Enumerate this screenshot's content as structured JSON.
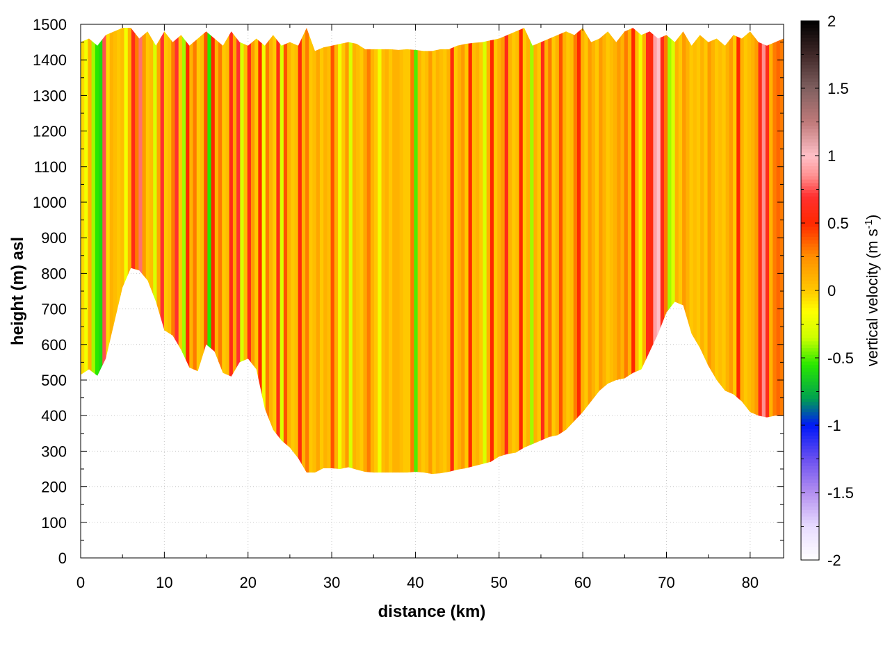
{
  "chart_data": {
    "type": "heatmap",
    "xlabel": "distance (km)",
    "ylabel": "height (m) asl",
    "colorbar_label": "vertical velocity (m s",
    "colorbar_label_sup": "-1",
    "colorbar_label_tail": ")",
    "xlim": [
      0,
      84
    ],
    "ylim": [
      0,
      1500
    ],
    "clim": [
      -2,
      2
    ],
    "x_ticks": [
      0,
      10,
      20,
      30,
      40,
      50,
      60,
      70,
      80
    ],
    "x_tick_labels": [
      "0",
      "10",
      "20",
      "30",
      "40",
      "50",
      "60",
      "70",
      "80"
    ],
    "y_ticks": [
      0,
      100,
      200,
      300,
      400,
      500,
      600,
      700,
      800,
      900,
      1000,
      1100,
      1200,
      1300,
      1400,
      1500
    ],
    "y_tick_labels": [
      "0",
      "100",
      "200",
      "300",
      "400",
      "500",
      "600",
      "700",
      "800",
      "900",
      "1000",
      "1100",
      "1200",
      "1300",
      "1400",
      "1500"
    ],
    "c_ticks": [
      -2,
      -1.5,
      -1,
      -0.5,
      0,
      0.5,
      1,
      1.5,
      2
    ],
    "c_tick_labels": [
      "-2",
      "-1.5",
      "-1",
      "-0.5",
      "0",
      "0.5",
      "1",
      "1.5",
      "2"
    ],
    "grid": true,
    "colormap": [
      [
        -2.0,
        "#ffffff"
      ],
      [
        -1.75,
        "#e8dcff"
      ],
      [
        -1.5,
        "#b490f0"
      ],
      [
        -1.25,
        "#6a50f0"
      ],
      [
        -1.0,
        "#0018f8"
      ],
      [
        -0.8,
        "#00a050"
      ],
      [
        -0.55,
        "#28e800"
      ],
      [
        -0.35,
        "#ccff00"
      ],
      [
        -0.15,
        "#ffff00"
      ],
      [
        0.0,
        "#ffc800"
      ],
      [
        0.25,
        "#ff9000"
      ],
      [
        0.5,
        "#ff2800"
      ],
      [
        0.7,
        "#ff3030"
      ],
      [
        0.85,
        "#ff9090"
      ],
      [
        1.0,
        "#ffc0c8"
      ],
      [
        1.25,
        "#c07a7a"
      ],
      [
        1.5,
        "#806060"
      ],
      [
        1.75,
        "#402828"
      ],
      [
        2.0,
        "#000000"
      ]
    ],
    "terrain": {
      "x": [
        0,
        1,
        2,
        3,
        4,
        5,
        6,
        7,
        8,
        9,
        10,
        11,
        12,
        13,
        14,
        15,
        16,
        17,
        18,
        19,
        20,
        21,
        22,
        23,
        24,
        25,
        26,
        27,
        28,
        29,
        30,
        31,
        32,
        33,
        34,
        35,
        36,
        37,
        38,
        39,
        40,
        41,
        42,
        43,
        44,
        45,
        46,
        47,
        48,
        49,
        50,
        51,
        52,
        53,
        54,
        55,
        56,
        57,
        58,
        59,
        60,
        61,
        62,
        63,
        64,
        65,
        66,
        67,
        68,
        69,
        70,
        71,
        72,
        73,
        74,
        75,
        76,
        77,
        78,
        79,
        80,
        81,
        82,
        83,
        84
      ],
      "y": [
        515,
        530,
        512,
        560,
        660,
        760,
        815,
        808,
        780,
        720,
        640,
        625,
        585,
        535,
        525,
        600,
        580,
        520,
        510,
        550,
        560,
        530,
        420,
        360,
        330,
        310,
        280,
        240,
        240,
        252,
        252,
        250,
        255,
        248,
        242,
        240,
        240,
        240,
        240,
        240,
        242,
        240,
        236,
        238,
        242,
        248,
        252,
        258,
        264,
        270,
        285,
        292,
        296,
        310,
        320,
        330,
        340,
        345,
        360,
        385,
        410,
        440,
        470,
        490,
        500,
        505,
        520,
        530,
        580,
        630,
        690,
        720,
        710,
        630,
        590,
        540,
        500,
        470,
        460,
        440,
        410,
        400,
        395,
        400,
        400
      ]
    },
    "top_boundary": {
      "x": [
        0,
        1,
        2,
        3,
        4,
        5,
        6,
        7,
        8,
        9,
        10,
        11,
        12,
        13,
        14,
        15,
        16,
        17,
        18,
        19,
        20,
        21,
        22,
        23,
        24,
        25,
        26,
        27,
        28,
        29,
        30,
        31,
        32,
        33,
        34,
        35,
        36,
        37,
        38,
        39,
        40,
        41,
        42,
        43,
        44,
        45,
        46,
        47,
        48,
        49,
        50,
        51,
        52,
        53,
        54,
        55,
        56,
        57,
        58,
        59,
        60,
        61,
        62,
        63,
        64,
        65,
        66,
        67,
        68,
        69,
        70,
        71,
        72,
        73,
        74,
        75,
        76,
        77,
        78,
        79,
        80,
        81,
        82,
        83,
        84
      ],
      "y": [
        1450,
        1460,
        1440,
        1470,
        1480,
        1490,
        1490,
        1460,
        1480,
        1440,
        1480,
        1450,
        1470,
        1440,
        1460,
        1480,
        1460,
        1440,
        1480,
        1450,
        1440,
        1460,
        1440,
        1470,
        1440,
        1450,
        1440,
        1490,
        1425,
        1435,
        1440,
        1445,
        1450,
        1445,
        1430,
        1430,
        1430,
        1430,
        1428,
        1430,
        1428,
        1425,
        1425,
        1430,
        1430,
        1440,
        1445,
        1448,
        1450,
        1455,
        1460,
        1470,
        1480,
        1490,
        1440,
        1450,
        1460,
        1470,
        1480,
        1470,
        1490,
        1450,
        1460,
        1480,
        1450,
        1480,
        1490,
        1470,
        1480,
        1460,
        1470,
        1450,
        1480,
        1440,
        1470,
        1450,
        1460,
        1440,
        1470,
        1460,
        1480,
        1450,
        1440,
        1450,
        1460
      ]
    },
    "columns_w": [
      -0.05,
      -0.2,
      0.1,
      -0.4,
      -0.55,
      -0.6,
      0.75,
      -0.05,
      0.1,
      0.05,
      0.0,
      0.05,
      -0.2,
      0.1,
      0.6,
      0.3,
      0.8,
      0.2,
      0.0,
      0.05,
      -0.3,
      0.15,
      0.7,
      0.0,
      0.05,
      0.3,
      0.7,
      0.0,
      -0.4,
      0.5,
      0.1,
      0.3,
      0.0,
      0.05,
      0.4,
      -0.55,
      0.5,
      0.1,
      0.3,
      0.0,
      0.05,
      0.6,
      0.15,
      0.7,
      -0.3,
      0.05,
      0.6,
      0.2,
      0.0,
      0.5,
      -0.2,
      0.3,
      0.1,
      0.0,
      0.6,
      -0.3,
      0.4,
      0.1,
      0.0,
      0.05,
      0.55,
      0.1,
      0.3,
      0.0,
      0.05,
      0.15,
      0.0,
      0.1,
      0.05,
      0.4,
      0.1,
      -0.2,
      0.0,
      0.2,
      -0.3,
      0.1,
      0.05,
      0.0,
      0.15,
      0.3,
      0.1,
      0.0,
      -0.2,
      0.05,
      0.1,
      0.0,
      0.1,
      0.1,
      0.05,
      0.0,
      0.0,
      0.3,
      -0.5,
      0.1,
      0.0,
      0.05,
      0.2,
      0.0,
      0.1,
      0.05,
      0.0,
      0.1,
      0.55,
      0.0,
      0.1,
      0.2,
      0.0,
      0.5,
      0.05,
      0.1,
      0.0,
      -0.3,
      0.1,
      0.5,
      0.0,
      0.1,
      0.2,
      0.6,
      0.1,
      0.0,
      0.05,
      0.5,
      0.0,
      0.1,
      -0.4,
      0.1,
      0.0,
      0.6,
      0.1,
      0.3,
      0.0,
      0.1,
      0.4,
      0.1,
      0.0,
      0.05,
      0.3,
      0.5,
      0.1,
      0.0,
      0.2,
      0.1,
      0.0,
      0.2,
      0.1,
      0.0,
      0.05,
      0.1,
      0.2,
      0.1,
      0.3,
      0.1,
      0.5,
      0.05,
      -0.2,
      0.1,
      0.6,
      0.55,
      0.9,
      1.0,
      0.6,
      0.3,
      -0.4,
      -0.3,
      0.1,
      0.0,
      0.2,
      0.1,
      0.0,
      0.05,
      0.0,
      0.1,
      0.0,
      0.2,
      0.1,
      0.0,
      0.05,
      0.0,
      0.1,
      0.2,
      0.0,
      0.5,
      0.1,
      0.0,
      0.05,
      0.1,
      0.2,
      0.6,
      0.85,
      0.6,
      0.1,
      0.3,
      0.35,
      0.3
    ]
  }
}
